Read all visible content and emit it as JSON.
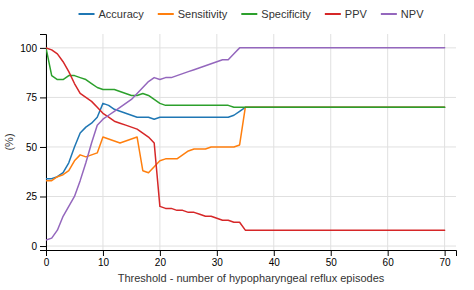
{
  "chart_data": {
    "type": "line",
    "xlabel": "Threshold - number of hypopharyngeal reflux episodes",
    "ylabel": "(%)",
    "xlim": [
      0,
      72
    ],
    "ylim": [
      -2,
      107
    ],
    "xticks": [
      0,
      10,
      20,
      30,
      40,
      50,
      60,
      70
    ],
    "yticks": [
      0,
      25,
      50,
      75,
      100
    ],
    "grid": true,
    "legend": "top",
    "series": [
      {
        "name": "Accuracy",
        "x": [
          0,
          1,
          2,
          3,
          4,
          5,
          6,
          7,
          8,
          9,
          10,
          11,
          12,
          13,
          14,
          15,
          16,
          17,
          18,
          19,
          20,
          21,
          22,
          23,
          24,
          25,
          26,
          27,
          28,
          29,
          30,
          31,
          32,
          33,
          34,
          35,
          40,
          70
        ],
        "values": [
          34,
          34,
          35,
          37,
          42,
          50,
          57,
          60,
          62,
          65,
          72,
          71,
          69,
          68,
          67,
          66,
          65,
          65,
          65,
          64,
          65,
          65,
          65,
          65,
          65,
          65,
          65,
          65,
          65,
          65,
          65,
          65,
          65,
          66,
          68,
          70,
          70,
          70
        ]
      },
      {
        "name": "Sensitivity",
        "x": [
          0,
          1,
          2,
          3,
          4,
          5,
          6,
          7,
          8,
          9,
          10,
          11,
          12,
          13,
          14,
          15,
          16,
          17,
          18,
          19,
          20,
          21,
          22,
          23,
          24,
          25,
          26,
          27,
          28,
          29,
          30,
          31,
          32,
          33,
          34,
          35,
          40,
          70
        ],
        "values": [
          33,
          33,
          35,
          36,
          38,
          43,
          46,
          45,
          46,
          47,
          55,
          54,
          53,
          52,
          53,
          54,
          55,
          38,
          37,
          40,
          43,
          44,
          44,
          44,
          46,
          48,
          49,
          49,
          49,
          50,
          50,
          50,
          50,
          50,
          51,
          70,
          70,
          70
        ]
      },
      {
        "name": "Specificity",
        "x": [
          0,
          1,
          2,
          3,
          4,
          5,
          6,
          7,
          8,
          9,
          10,
          11,
          12,
          13,
          14,
          15,
          16,
          17,
          18,
          19,
          20,
          21,
          22,
          23,
          24,
          25,
          26,
          27,
          28,
          29,
          30,
          31,
          32,
          33,
          34,
          35,
          40,
          70
        ],
        "values": [
          100,
          86,
          84,
          84,
          86,
          86,
          85,
          84,
          82,
          80,
          79,
          79,
          79,
          78,
          77,
          76,
          76,
          77,
          76,
          74,
          72,
          71,
          71,
          71,
          71,
          71,
          71,
          71,
          71,
          71,
          71,
          71,
          71,
          70,
          70,
          70,
          70,
          70
        ]
      },
      {
        "name": "PPV",
        "x": [
          0,
          1,
          2,
          3,
          4,
          5,
          6,
          7,
          8,
          9,
          10,
          11,
          12,
          13,
          14,
          15,
          16,
          17,
          18,
          19,
          20,
          21,
          22,
          23,
          24,
          25,
          26,
          27,
          28,
          29,
          30,
          31,
          32,
          33,
          34,
          35,
          40,
          70
        ],
        "values": [
          100,
          99,
          97,
          93,
          88,
          82,
          77,
          75,
          73,
          70,
          67,
          65,
          63,
          62,
          61,
          60,
          59,
          57,
          55,
          52,
          20,
          19,
          19,
          18,
          18,
          17,
          17,
          16,
          15,
          15,
          14,
          13,
          13,
          12,
          12,
          8,
          8,
          8
        ]
      },
      {
        "name": "NPV",
        "x": [
          0,
          1,
          2,
          3,
          4,
          5,
          6,
          7,
          8,
          9,
          10,
          11,
          12,
          13,
          14,
          15,
          16,
          17,
          18,
          19,
          20,
          21,
          22,
          23,
          24,
          25,
          26,
          27,
          28,
          29,
          30,
          31,
          32,
          33,
          34,
          35,
          40,
          70
        ],
        "values": [
          3,
          4,
          8,
          15,
          20,
          25,
          33,
          42,
          52,
          61,
          64,
          66,
          68,
          70,
          72,
          74,
          77,
          80,
          83,
          85,
          84,
          85,
          85,
          86,
          87,
          88,
          89,
          90,
          91,
          92,
          93,
          94,
          94,
          97,
          100,
          100,
          100,
          100
        ]
      }
    ]
  }
}
